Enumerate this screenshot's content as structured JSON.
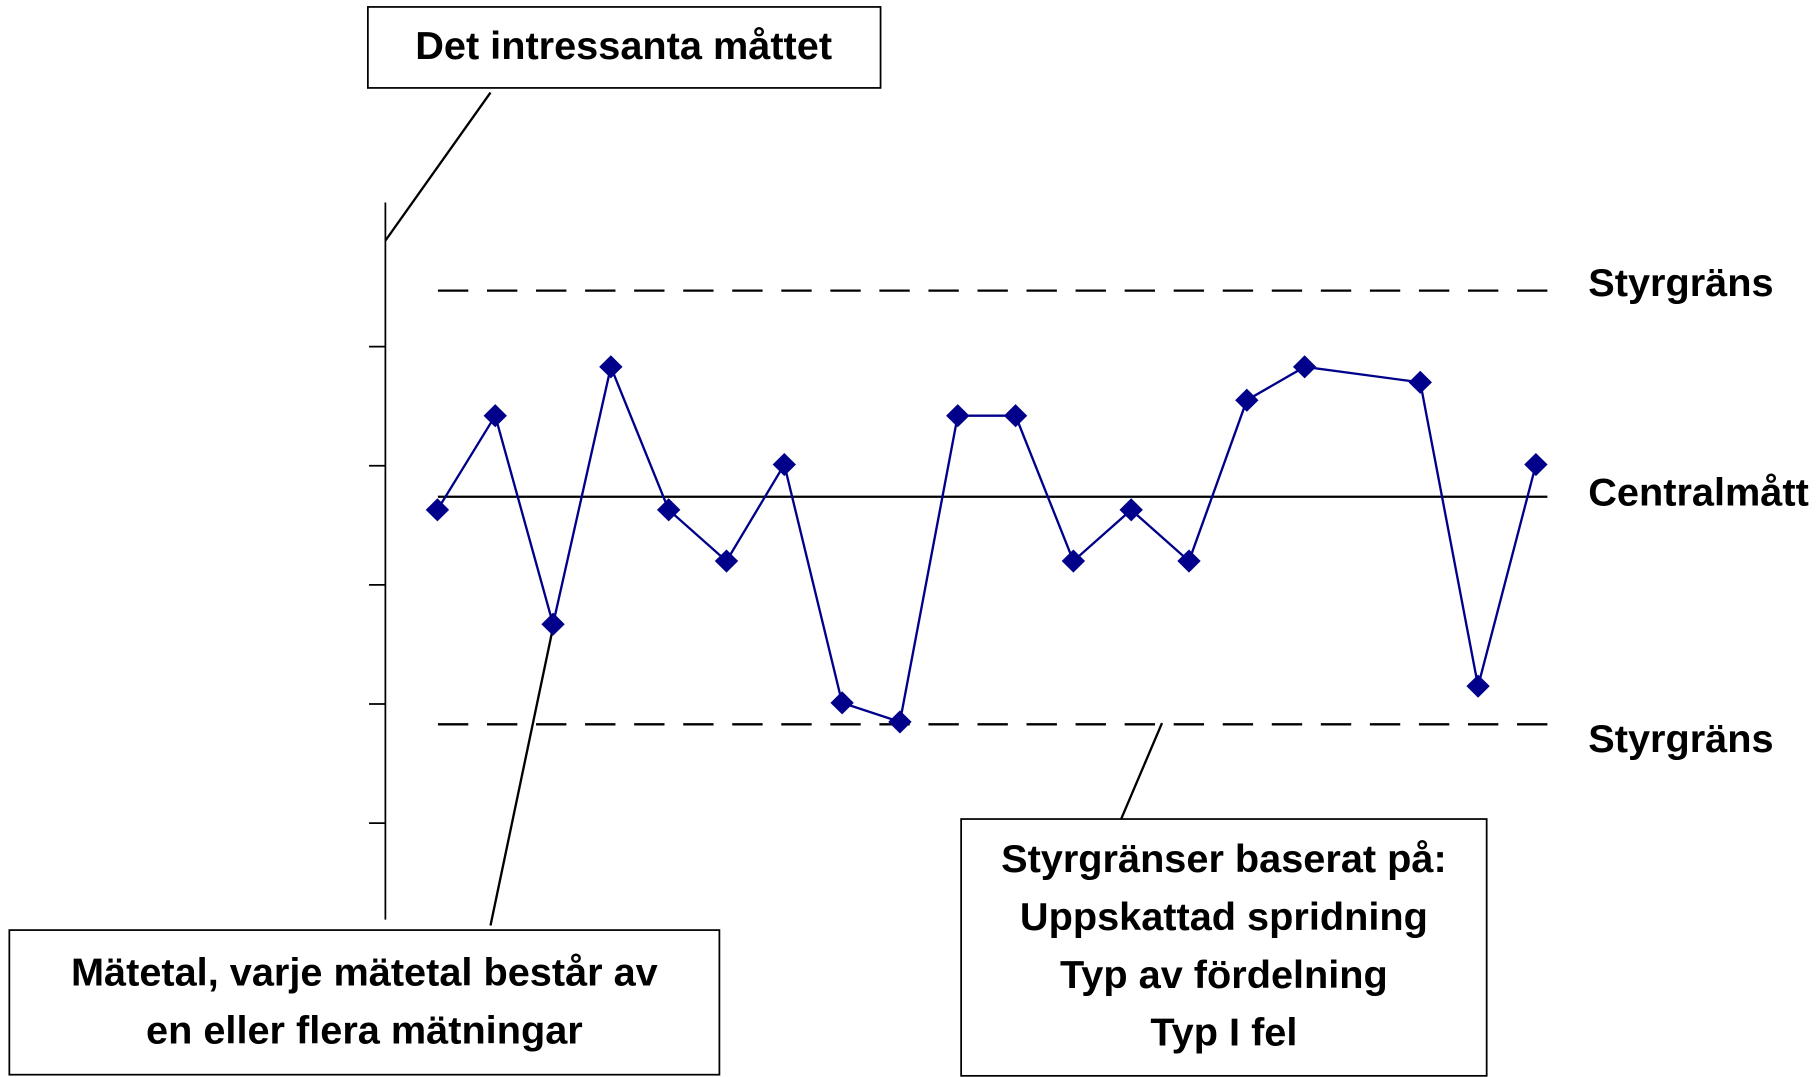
{
  "chart_data": {
    "type": "line",
    "x": [
      1,
      2,
      3,
      4,
      5,
      6,
      7,
      8,
      9,
      10,
      11,
      12,
      13,
      14,
      15,
      16,
      18,
      19,
      20
    ],
    "series": [
      {
        "color": "#00008b",
        "values": [
          3.63,
          4.42,
          2.67,
          4.83,
          3.63,
          3.2,
          4.01,
          2.01,
          1.85,
          4.42,
          4.42,
          3.2,
          3.63,
          3.2,
          4.55,
          4.83,
          4.7,
          2.15,
          4.01
        ]
      }
    ],
    "xlim": [
      0.1,
      20.3
    ],
    "ylim": [
      0.19,
      6.21
    ],
    "yticks": [
      1,
      2,
      3,
      4,
      5
    ],
    "reference_lines": [
      {
        "label": "Styrgräns",
        "value": 5.47,
        "style": "dashed"
      },
      {
        "label": "Centralmått",
        "value": 3.74,
        "style": "solid"
      },
      {
        "label": "Styrgräns",
        "value": 1.83,
        "style": "dashed"
      }
    ],
    "annotations": [
      {
        "lines": [
          "Det intressanta måttet"
        ]
      },
      {
        "lines": [
          "Mätetal, varje mätetal består av",
          "en eller flera mätningar"
        ]
      },
      {
        "lines": [
          "Styrgränser baserat på:",
          "Uppskattad spridning",
          "Typ av fördelning",
          "Typ I fel"
        ]
      }
    ]
  }
}
